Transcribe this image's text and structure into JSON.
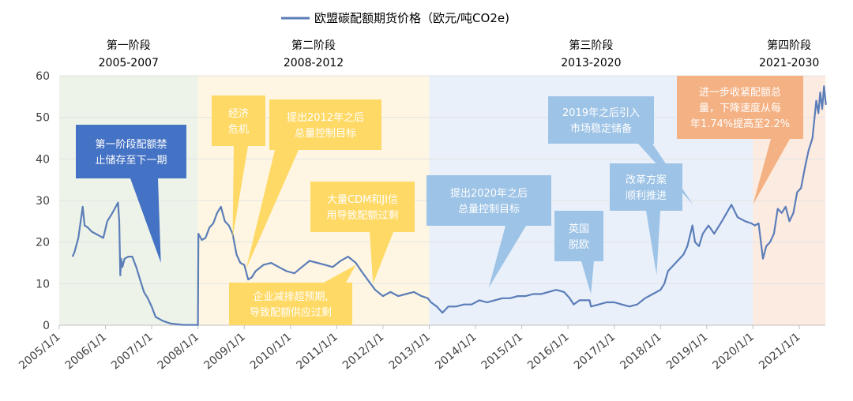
{
  "chart_data": {
    "type": "line",
    "legend": {
      "label": "欧盟碳配额期货价格（欧元/吨CO2e)",
      "color": "#5B7DB8",
      "position": "top-center"
    },
    "y_ticks": [
      0,
      10,
      20,
      30,
      40,
      50,
      60
    ],
    "ylim": [
      0,
      60
    ],
    "x_ticks": [
      "2005/1/1",
      "2006/1/1",
      "2007/1/1",
      "2008/1/1",
      "2009/1/1",
      "2010/1/1",
      "2011/1/1",
      "2012/1/1",
      "2013/1/1",
      "2014/1/1",
      "2015/1/1",
      "2016/1/1",
      "2017/1/1",
      "2018/1/1",
      "2019/1/1",
      "2020/1/1",
      "2021/1/1"
    ],
    "xlim": [
      "2005-01-01",
      "2021-07-31"
    ],
    "phases": [
      {
        "name": "第一阶段",
        "years": "2005-2007",
        "start": "2005-01-01",
        "end": "2008-01-01",
        "color": "#EDF3E8"
      },
      {
        "name": "第二阶段",
        "years": "2008-2012",
        "start": "2008-01-01",
        "end": "2013-01-01",
        "color": "#FEF6E2"
      },
      {
        "name": "第三阶段",
        "years": "2013-2020",
        "start": "2013-01-01",
        "end": "2020-01-01",
        "color": "#E9F0FA"
      },
      {
        "name": "第四阶段",
        "years": "2021-2030",
        "start": "2020-01-01",
        "end": "2021-07-31",
        "color": "#FCEBE1"
      }
    ],
    "series": [
      {
        "color": "#5B7DB8",
        "points": [
          [
            "2005-04-15",
            16.5
          ],
          [
            "2005-05-01",
            17.5
          ],
          [
            "2005-06-01",
            21
          ],
          [
            "2005-07-05",
            28.5
          ],
          [
            "2005-07-20",
            24
          ],
          [
            "2005-08-15",
            23.5
          ],
          [
            "2005-09-15",
            22.5
          ],
          [
            "2005-10-15",
            22
          ],
          [
            "2005-11-15",
            21.5
          ],
          [
            "2005-12-15",
            21
          ],
          [
            "2006-01-15",
            25
          ],
          [
            "2006-02-15",
            26.5
          ],
          [
            "2006-03-15",
            28
          ],
          [
            "2006-04-10",
            29.5
          ],
          [
            "2006-04-20",
            25
          ],
          [
            "2006-04-28",
            12
          ],
          [
            "2006-05-05",
            16
          ],
          [
            "2006-05-15",
            14
          ],
          [
            "2006-06-01",
            16
          ],
          [
            "2006-07-01",
            16.5
          ],
          [
            "2006-08-01",
            16.5
          ],
          [
            "2006-09-01",
            14
          ],
          [
            "2006-10-01",
            11
          ],
          [
            "2006-11-01",
            8
          ],
          [
            "2006-12-01",
            6.5
          ],
          [
            "2007-01-01",
            4.5
          ],
          [
            "2007-02-01",
            2
          ],
          [
            "2007-04-01",
            1
          ],
          [
            "2007-06-01",
            0.4
          ],
          [
            "2007-09-01",
            0.1
          ],
          [
            "2007-12-20",
            0.05
          ],
          [
            "2008-01-01",
            0.05
          ],
          [
            "2008-01-05",
            22
          ],
          [
            "2008-02-01",
            20.5
          ],
          [
            "2008-03-01",
            21
          ],
          [
            "2008-04-01",
            23.5
          ],
          [
            "2008-05-01",
            24.5
          ],
          [
            "2008-06-01",
            27
          ],
          [
            "2008-07-01",
            28.5
          ],
          [
            "2008-08-01",
            25
          ],
          [
            "2008-09-01",
            24
          ],
          [
            "2008-10-01",
            22
          ],
          [
            "2008-11-01",
            17
          ],
          [
            "2008-12-01",
            15
          ],
          [
            "2009-01-01",
            14.5
          ],
          [
            "2009-02-01",
            11
          ],
          [
            "2009-03-01",
            11.5
          ],
          [
            "2009-04-01",
            13
          ],
          [
            "2009-06-01",
            14.5
          ],
          [
            "2009-08-01",
            15
          ],
          [
            "2009-10-01",
            14
          ],
          [
            "2009-12-01",
            13
          ],
          [
            "2010-02-01",
            12.5
          ],
          [
            "2010-04-01",
            14
          ],
          [
            "2010-06-01",
            15.5
          ],
          [
            "2010-08-01",
            15
          ],
          [
            "2010-10-01",
            14.5
          ],
          [
            "2010-12-01",
            14
          ],
          [
            "2011-02-01",
            15.5
          ],
          [
            "2011-04-01",
            16.5
          ],
          [
            "2011-06-01",
            15
          ],
          [
            "2011-07-15",
            13
          ],
          [
            "2011-09-01",
            11
          ],
          [
            "2011-11-01",
            8.5
          ],
          [
            "2012-01-01",
            7
          ],
          [
            "2012-03-01",
            8
          ],
          [
            "2012-05-01",
            7
          ],
          [
            "2012-07-01",
            7.5
          ],
          [
            "2012-09-01",
            8
          ],
          [
            "2012-11-01",
            7
          ],
          [
            "2012-12-20",
            6.5
          ],
          [
            "2013-01-15",
            5.5
          ],
          [
            "2013-03-01",
            4.5
          ],
          [
            "2013-04-15",
            3
          ],
          [
            "2013-06-01",
            4.5
          ],
          [
            "2013-08-01",
            4.5
          ],
          [
            "2013-10-01",
            5
          ],
          [
            "2013-12-01",
            5
          ],
          [
            "2014-02-01",
            6
          ],
          [
            "2014-04-01",
            5.5
          ],
          [
            "2014-06-01",
            6
          ],
          [
            "2014-08-01",
            6.5
          ],
          [
            "2014-10-01",
            6.5
          ],
          [
            "2014-12-01",
            7
          ],
          [
            "2015-02-01",
            7
          ],
          [
            "2015-04-01",
            7.5
          ],
          [
            "2015-06-01",
            7.5
          ],
          [
            "2015-08-01",
            8
          ],
          [
            "2015-10-01",
            8.5
          ],
          [
            "2015-12-01",
            8
          ],
          [
            "2016-01-15",
            6.5
          ],
          [
            "2016-02-15",
            5
          ],
          [
            "2016-04-01",
            6
          ],
          [
            "2016-06-20",
            6
          ],
          [
            "2016-07-01",
            4.5
          ],
          [
            "2016-09-01",
            5
          ],
          [
            "2016-11-01",
            5.5
          ],
          [
            "2017-01-01",
            5.5
          ],
          [
            "2017-03-01",
            5
          ],
          [
            "2017-05-01",
            4.5
          ],
          [
            "2017-07-01",
            5
          ],
          [
            "2017-09-01",
            6.5
          ],
          [
            "2017-11-01",
            7.5
          ],
          [
            "2018-01-01",
            8.5
          ],
          [
            "2018-02-01",
            10
          ],
          [
            "2018-03-01",
            13
          ],
          [
            "2018-05-01",
            15
          ],
          [
            "2018-07-01",
            17
          ],
          [
            "2018-08-01",
            19
          ],
          [
            "2018-09-10",
            24
          ],
          [
            "2018-10-01",
            20
          ],
          [
            "2018-11-01",
            19
          ],
          [
            "2018-12-01",
            22
          ],
          [
            "2019-01-15",
            24
          ],
          [
            "2019-03-01",
            22
          ],
          [
            "2019-05-01",
            25
          ],
          [
            "2019-07-15",
            29
          ],
          [
            "2019-09-01",
            26
          ],
          [
            "2019-11-01",
            25
          ],
          [
            "2019-12-20",
            24.5
          ],
          [
            "2020-01-15",
            24
          ],
          [
            "2020-02-15",
            24.5
          ],
          [
            "2020-03-20",
            16
          ],
          [
            "2020-04-15",
            19
          ],
          [
            "2020-05-15",
            20
          ],
          [
            "2020-06-15",
            22
          ],
          [
            "2020-07-15",
            28
          ],
          [
            "2020-08-15",
            27
          ],
          [
            "2020-09-15",
            28.5
          ],
          [
            "2020-10-15",
            25
          ],
          [
            "2020-11-15",
            27
          ],
          [
            "2020-12-15",
            32
          ],
          [
            "2021-01-15",
            33
          ],
          [
            "2021-02-15",
            38
          ],
          [
            "2021-03-15",
            42
          ],
          [
            "2021-04-15",
            45
          ],
          [
            "2021-05-15",
            54
          ],
          [
            "2021-06-01",
            51
          ],
          [
            "2021-06-15",
            56
          ],
          [
            "2021-07-01",
            52
          ],
          [
            "2021-07-15",
            57.5
          ],
          [
            "2021-07-30",
            53
          ]
        ]
      }
    ],
    "annotations": [
      {
        "id": "a1",
        "lines": [
          "第一阶段配额禁",
          "止储存至下一期"
        ],
        "color": "#4472C4",
        "tip": [
          "2007-03-15",
          15
        ]
      },
      {
        "id": "a2",
        "lines": [
          "经济",
          "危机"
        ],
        "color": "#FFD966",
        "tip": [
          "2008-10-01",
          21
        ]
      },
      {
        "id": "a3",
        "lines": [
          "提出2012年之后",
          "总量控制目标"
        ],
        "color": "#FFD966",
        "tip": [
          "2009-01-15",
          13.5
        ]
      },
      {
        "id": "a4",
        "lines": [
          "大量CDM和JI信",
          "用导致配额过剩"
        ],
        "color": "#FFD966",
        "tip": [
          "2011-10-15",
          10
        ]
      },
      {
        "id": "a5",
        "lines": [
          "企业减排超预期,",
          "导致配额供应过剩"
        ],
        "color": "#FFD966",
        "tip": [
          "2011-06-01",
          14.5
        ]
      },
      {
        "id": "a6",
        "lines": [
          "提出2020年之后",
          "总量控制目标"
        ],
        "color": "#9DC3E6",
        "tip": [
          "2014-04-15",
          9
        ]
      },
      {
        "id": "a7",
        "lines": [
          "英国",
          "脱欧"
        ],
        "color": "#9DC3E6",
        "tip": [
          "2016-07-01",
          7.5
        ]
      },
      {
        "id": "a8",
        "lines": [
          "2019年之后引入",
          "市场稳定储备"
        ],
        "color": "#9DC3E6",
        "tip": [
          "2018-09-15",
          29
        ]
      },
      {
        "id": "a9",
        "lines": [
          "改革方案",
          "顺利推进"
        ],
        "color": "#9DC3E6",
        "tip": [
          "2017-12-01",
          12
        ]
      },
      {
        "id": "a10",
        "lines": [
          "进一步收紧配额总",
          "量，下降速度从每",
          "年1.74%提高至2.2%"
        ],
        "color": "#F4B183",
        "tip": [
          "2020-01-01",
          29
        ]
      }
    ]
  }
}
